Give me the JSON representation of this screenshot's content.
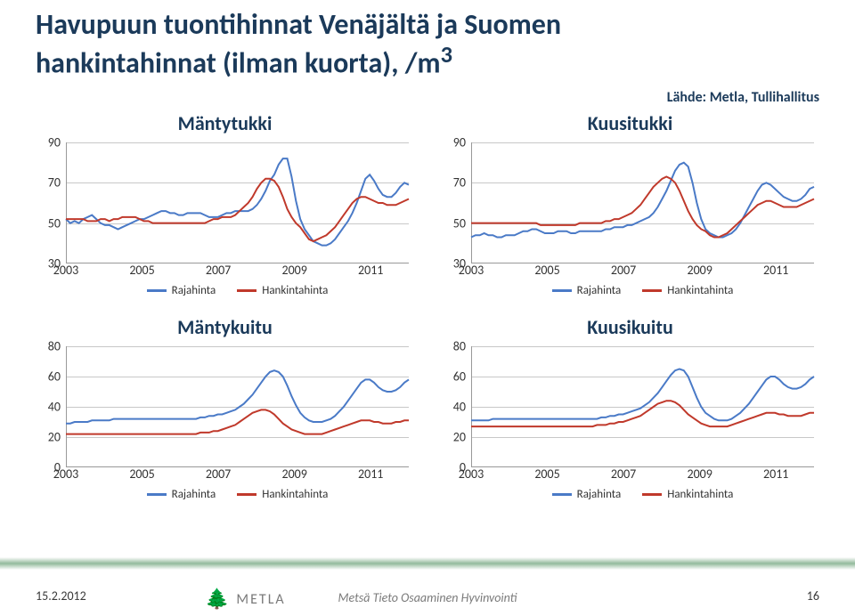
{
  "title_line1": "Havupuun tuontihinnat Venäjältä ja Suomen",
  "title_line2": "hankintahinnat (ilman kuorta), /m",
  "title_sup": "3",
  "source": "Lähde: Metla, Tullihallitus",
  "footer": {
    "date": "15.2.2012",
    "center": "Metsä  Tieto  Osaaminen  Hyvinvointi",
    "page": "16",
    "logo_text": "METLA"
  },
  "colors": {
    "line_import": "#4a7ac7",
    "line_domestic": "#c0392b",
    "grid": "#c8c8c8",
    "axis": "#999999",
    "bg": "#ffffff",
    "title": "#1b3a5a"
  },
  "legend_labels": {
    "import": "Rajahinta",
    "domestic": "Hankintahinta"
  },
  "x_ticks": [
    "2003",
    "2005",
    "2007",
    "2009",
    "2011"
  ],
  "charts": [
    {
      "key": "mantytukki",
      "title": "Mäntytukki",
      "ymin": 30,
      "ymax": 90,
      "ystep": 20,
      "import": [
        52,
        50,
        51,
        50,
        52,
        53,
        54,
        52,
        50,
        49,
        49,
        48,
        47,
        48,
        49,
        50,
        51,
        52,
        52,
        53,
        54,
        55,
        56,
        56,
        55,
        55,
        54,
        54,
        55,
        55,
        55,
        55,
        54,
        53,
        53,
        53,
        54,
        55,
        55,
        56,
        56,
        56,
        56,
        57,
        59,
        62,
        66,
        71,
        74,
        79,
        82,
        82,
        73,
        61,
        52,
        47,
        44,
        41,
        40,
        39,
        39,
        40,
        42,
        45,
        48,
        51,
        55,
        60,
        66,
        72,
        74,
        71,
        67,
        64,
        63,
        63,
        65,
        68,
        70,
        69
      ],
      "domestic": [
        52,
        52,
        52,
        52,
        52,
        51,
        51,
        51,
        52,
        52,
        51,
        52,
        52,
        53,
        53,
        53,
        53,
        52,
        51,
        51,
        50,
        50,
        50,
        50,
        50,
        50,
        50,
        50,
        50,
        50,
        50,
        50,
        50,
        51,
        52,
        52,
        53,
        53,
        53,
        54,
        56,
        58,
        60,
        63,
        67,
        70,
        72,
        72,
        71,
        68,
        63,
        57,
        53,
        50,
        48,
        45,
        42,
        41,
        42,
        43,
        44,
        46,
        48,
        51,
        54,
        57,
        60,
        62,
        63,
        63,
        62,
        61,
        60,
        60,
        59,
        59,
        59,
        60,
        61,
        62
      ]
    },
    {
      "key": "kuusitukki",
      "title": "Kuusitukki",
      "ymin": 30,
      "ymax": 90,
      "ystep": 20,
      "import": [
        43,
        44,
        44,
        45,
        44,
        44,
        43,
        43,
        44,
        44,
        44,
        45,
        46,
        46,
        47,
        47,
        46,
        45,
        45,
        45,
        46,
        46,
        46,
        45,
        45,
        46,
        46,
        46,
        46,
        46,
        46,
        47,
        47,
        48,
        48,
        48,
        49,
        49,
        50,
        51,
        52,
        53,
        55,
        58,
        62,
        66,
        71,
        76,
        79,
        80,
        78,
        70,
        60,
        52,
        47,
        45,
        44,
        43,
        43,
        44,
        45,
        47,
        50,
        54,
        58,
        62,
        66,
        69,
        70,
        69,
        67,
        65,
        63,
        62,
        61,
        61,
        62,
        64,
        67,
        68
      ],
      "domestic": [
        50,
        50,
        50,
        50,
        50,
        50,
        50,
        50,
        50,
        50,
        50,
        50,
        50,
        50,
        50,
        50,
        49,
        49,
        49,
        49,
        49,
        49,
        49,
        49,
        49,
        50,
        50,
        50,
        50,
        50,
        50,
        51,
        51,
        52,
        52,
        53,
        54,
        55,
        57,
        59,
        62,
        65,
        68,
        70,
        72,
        73,
        72,
        70,
        66,
        61,
        56,
        52,
        49,
        47,
        46,
        44,
        43,
        43,
        44,
        45,
        47,
        49,
        51,
        53,
        55,
        57,
        59,
        60,
        61,
        61,
        60,
        59,
        58,
        58,
        58,
        58,
        59,
        60,
        61,
        62
      ]
    },
    {
      "key": "mantykuitu",
      "title": "Mäntykuitu",
      "ymin": 0,
      "ymax": 80,
      "ystep": 20,
      "import": [
        29,
        29,
        30,
        30,
        30,
        30,
        31,
        31,
        31,
        31,
        31,
        32,
        32,
        32,
        32,
        32,
        32,
        32,
        32,
        32,
        32,
        32,
        32,
        32,
        32,
        32,
        32,
        32,
        32,
        32,
        32,
        33,
        33,
        34,
        34,
        35,
        35,
        36,
        37,
        38,
        40,
        42,
        45,
        48,
        52,
        56,
        60,
        63,
        64,
        63,
        60,
        54,
        47,
        41,
        36,
        33,
        31,
        30,
        30,
        30,
        31,
        32,
        34,
        37,
        40,
        44,
        48,
        52,
        56,
        58,
        58,
        56,
        53,
        51,
        50,
        50,
        51,
        53,
        56,
        58
      ],
      "domestic": [
        22,
        22,
        22,
        22,
        22,
        22,
        22,
        22,
        22,
        22,
        22,
        22,
        22,
        22,
        22,
        22,
        22,
        22,
        22,
        22,
        22,
        22,
        22,
        22,
        22,
        22,
        22,
        22,
        22,
        22,
        22,
        23,
        23,
        23,
        24,
        24,
        25,
        26,
        27,
        28,
        30,
        32,
        34,
        36,
        37,
        38,
        38,
        37,
        35,
        32,
        29,
        27,
        25,
        24,
        23,
        22,
        22,
        22,
        22,
        22,
        23,
        24,
        25,
        26,
        27,
        28,
        29,
        30,
        31,
        31,
        31,
        30,
        30,
        29,
        29,
        29,
        30,
        30,
        31,
        31
      ]
    },
    {
      "key": "kuusikuitu",
      "title": "Kuusikuitu",
      "ymin": 0,
      "ymax": 80,
      "ystep": 20,
      "import": [
        31,
        31,
        31,
        31,
        31,
        32,
        32,
        32,
        32,
        32,
        32,
        32,
        32,
        32,
        32,
        32,
        32,
        32,
        32,
        32,
        32,
        32,
        32,
        32,
        32,
        32,
        32,
        32,
        32,
        32,
        33,
        33,
        34,
        34,
        35,
        35,
        36,
        37,
        38,
        39,
        41,
        43,
        46,
        49,
        53,
        57,
        61,
        64,
        65,
        64,
        60,
        53,
        46,
        40,
        36,
        34,
        32,
        31,
        31,
        31,
        32,
        34,
        36,
        39,
        42,
        46,
        50,
        54,
        58,
        60,
        60,
        58,
        55,
        53,
        52,
        52,
        53,
        55,
        58,
        60
      ],
      "domestic": [
        27,
        27,
        27,
        27,
        27,
        27,
        27,
        27,
        27,
        27,
        27,
        27,
        27,
        27,
        27,
        27,
        27,
        27,
        27,
        27,
        27,
        27,
        27,
        27,
        27,
        27,
        27,
        27,
        27,
        28,
        28,
        28,
        29,
        29,
        30,
        30,
        31,
        32,
        33,
        34,
        36,
        38,
        40,
        42,
        43,
        44,
        44,
        43,
        41,
        38,
        35,
        33,
        31,
        29,
        28,
        27,
        27,
        27,
        27,
        27,
        28,
        29,
        30,
        31,
        32,
        33,
        34,
        35,
        36,
        36,
        36,
        35,
        35,
        34,
        34,
        34,
        34,
        35,
        36,
        36
      ]
    }
  ]
}
